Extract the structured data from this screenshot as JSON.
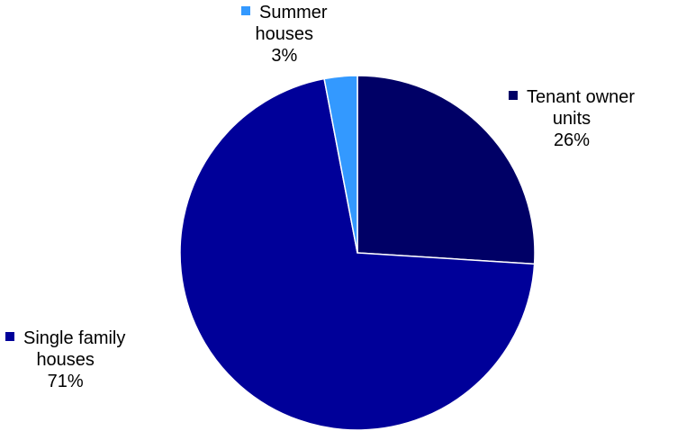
{
  "chart_data": {
    "type": "pie",
    "title": "",
    "slices": [
      {
        "name": "Tenant owner units",
        "label_lines": [
          "Tenant owner",
          "units"
        ],
        "percent_label": "26%",
        "value": 26,
        "color": "#000066"
      },
      {
        "name": "Single family houses",
        "label_lines": [
          "Single family",
          "houses"
        ],
        "percent_label": "71%",
        "value": 71,
        "color": "#000099"
      },
      {
        "name": "Summer houses",
        "label_lines": [
          "Summer",
          "houses"
        ],
        "percent_label": "3%",
        "value": 3,
        "color": "#3399FF"
      }
    ],
    "start_angle_deg": 0,
    "direction": "clockwise",
    "slice_border_color": "#FFFFFF"
  }
}
